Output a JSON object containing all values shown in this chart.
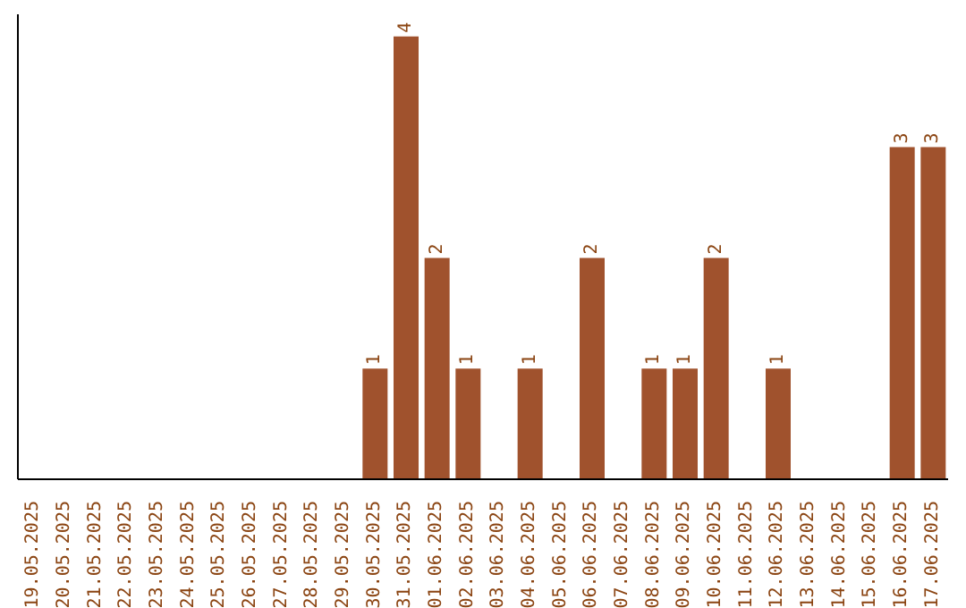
{
  "chart_data": {
    "type": "bar",
    "categories": [
      "19.05.2025",
      "20.05.2025",
      "21.05.2025",
      "22.05.2025",
      "23.05.2025",
      "24.05.2025",
      "25.05.2025",
      "26.05.2025",
      "27.05.2025",
      "28.05.2025",
      "29.05.2025",
      "30.05.2025",
      "31.05.2025",
      "01.06.2025",
      "02.06.2025",
      "03.06.2025",
      "04.06.2025",
      "05.06.2025",
      "06.06.2025",
      "07.06.2025",
      "08.06.2025",
      "09.06.2025",
      "10.06.2025",
      "11.06.2025",
      "12.06.2025",
      "13.06.2025",
      "14.06.2025",
      "15.06.2025",
      "16.06.2025",
      "17.06.2025"
    ],
    "values": [
      0,
      0,
      0,
      0,
      0,
      0,
      0,
      0,
      0,
      0,
      0,
      1,
      4,
      2,
      1,
      0,
      1,
      0,
      2,
      0,
      1,
      1,
      2,
      0,
      1,
      0,
      0,
      0,
      3,
      3
    ],
    "value_labels": [
      null,
      null,
      null,
      null,
      null,
      null,
      null,
      null,
      null,
      null,
      null,
      "1",
      "4",
      "2",
      "1",
      null,
      "1",
      null,
      "2",
      null,
      "1",
      "1",
      "2",
      null,
      "1",
      null,
      null,
      null,
      "3",
      "3"
    ],
    "color": "#a0522d",
    "grid": false,
    "legend": false
  }
}
